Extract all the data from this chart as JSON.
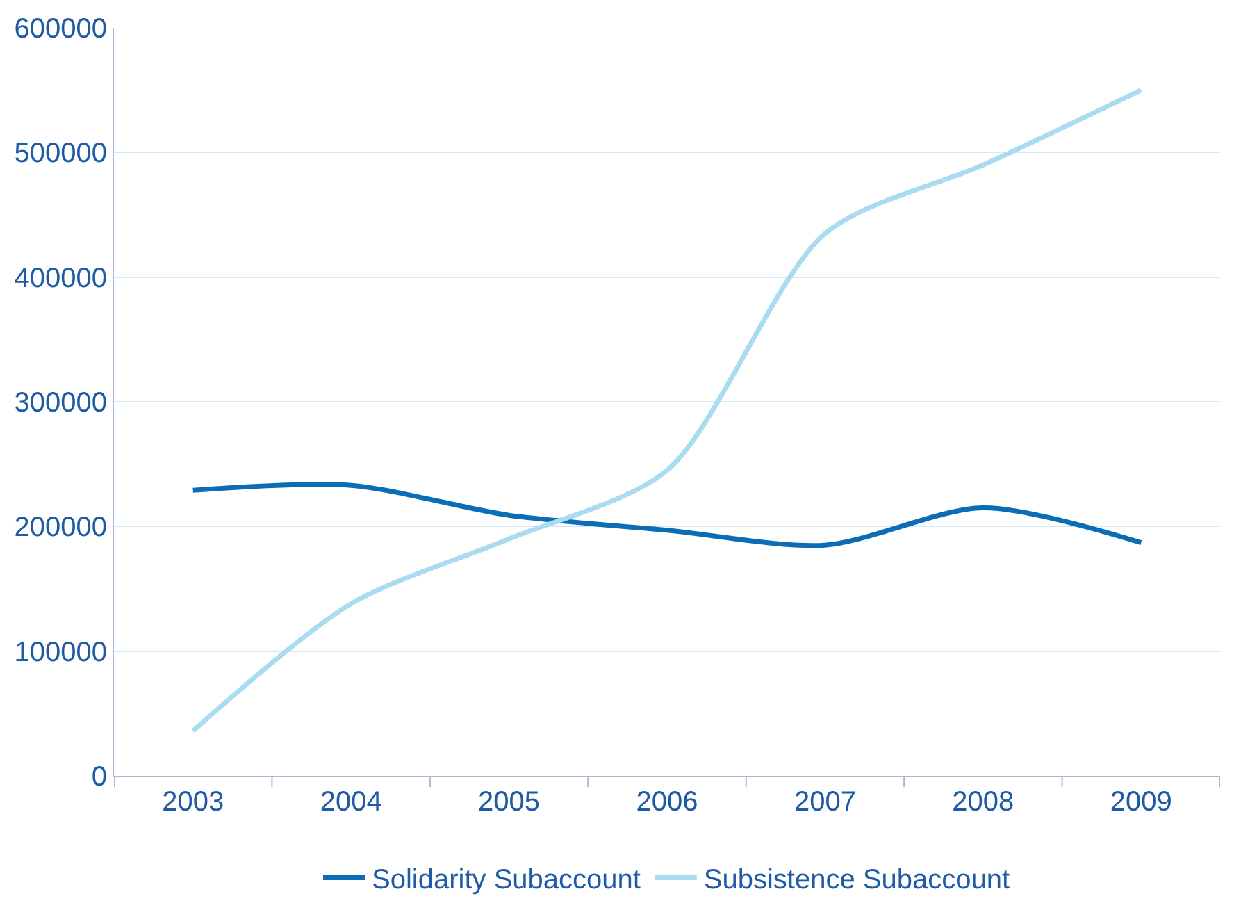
{
  "chart_data": {
    "type": "line",
    "categories": [
      "2003",
      "2004",
      "2005",
      "2006",
      "2007",
      "2008",
      "2009"
    ],
    "series": [
      {
        "name": "Solidarity Subaccount",
        "color": "#0b6db5",
        "values": [
          229000,
          233000,
          209000,
          197000,
          185000,
          215000,
          187000
        ]
      },
      {
        "name": "Subsistence Subaccount",
        "color": "#a9dcf1",
        "values": [
          36000,
          138000,
          190000,
          245000,
          435000,
          490000,
          550000
        ]
      }
    ],
    "ylim": [
      0,
      600000
    ],
    "yticks": [
      0,
      100000,
      200000,
      300000,
      400000,
      500000,
      600000
    ],
    "grid": "y",
    "legend": "bottom",
    "line_style": "solid",
    "marker": "none"
  }
}
